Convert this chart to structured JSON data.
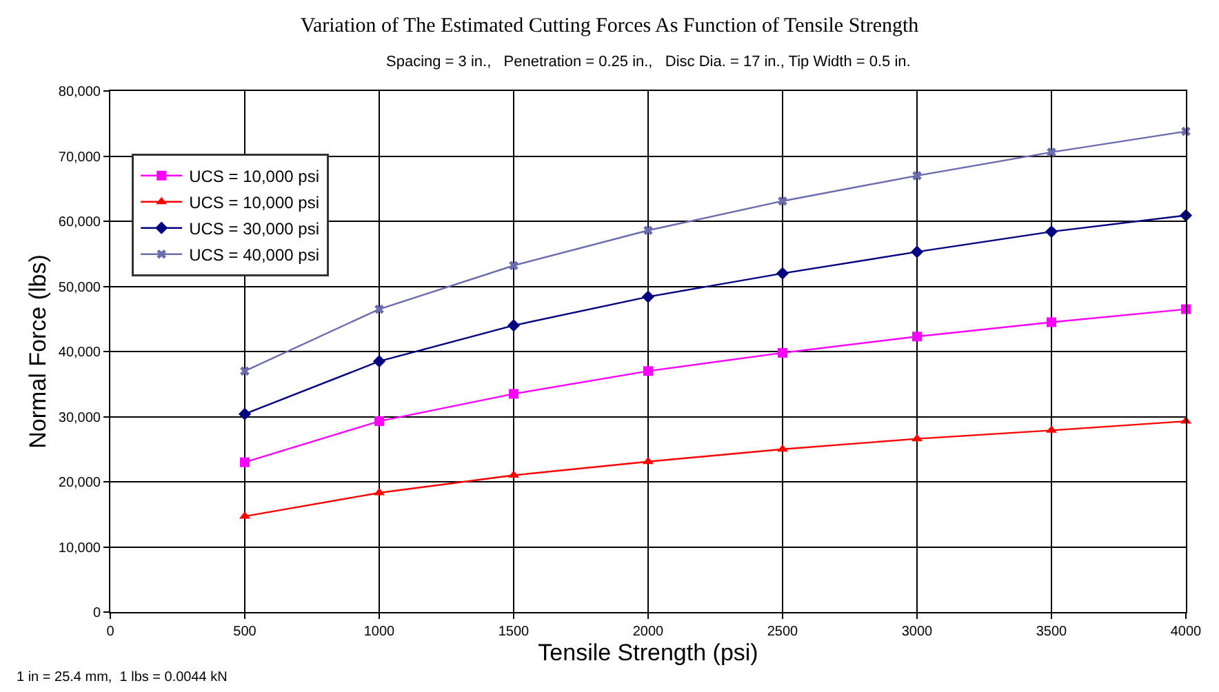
{
  "chart_data": {
    "type": "line",
    "title": "Variation of The Estimated Cutting Forces As Function of Tensile Strength",
    "subtitle": "Spacing = 3 in.,   Penetration = 0.25 in.,   Disc Dia. = 17 in., Tip Width = 0.5 in.",
    "xlabel": "Tensile Strength (psi)",
    "ylabel": "Normal Force (lbs)",
    "x": [
      500,
      1000,
      1500,
      2000,
      2500,
      3000,
      3500,
      4000
    ],
    "series": [
      {
        "name": "UCS = 10,000 psi",
        "color": "#ff00ff",
        "marker": "square",
        "values": [
          23000,
          29300,
          33500,
          37000,
          39800,
          42300,
          44500,
          46500
        ]
      },
      {
        "name": "UCS = 10,000 psi",
        "color": "#ff0000",
        "marker": "triangle",
        "values": [
          14700,
          18300,
          21000,
          23100,
          25000,
          26600,
          27900,
          29300
        ]
      },
      {
        "name": "UCS = 30,000 psi",
        "color": "#000080",
        "marker": "diamond",
        "values": [
          30400,
          38500,
          44000,
          48400,
          52000,
          55300,
          58400,
          60900
        ]
      },
      {
        "name": "UCS = 40,000 psi",
        "color": "#6b6bb0",
        "marker": "cross",
        "values": [
          37000,
          46500,
          53200,
          58600,
          63100,
          67000,
          70600,
          73800
        ]
      }
    ],
    "xlim": [
      0,
      4000
    ],
    "xticks": [
      0,
      500,
      1000,
      1500,
      2000,
      2500,
      3000,
      3500,
      4000
    ],
    "ylim": [
      0,
      80000
    ],
    "yticks": [
      0,
      {
        "value": 10000,
        "label": "10,000"
      },
      {
        "value": 20000,
        "label": "20,000"
      },
      {
        "value": 30000,
        "label": "30,000"
      },
      {
        "value": 40000,
        "label": "40,000"
      },
      {
        "value": 50000,
        "label": "50,000"
      },
      {
        "value": 60000,
        "label": "60,000"
      },
      {
        "value": 70000,
        "label": "70,000"
      },
      {
        "value": 80000,
        "label": "80,000"
      }
    ],
    "grid": true,
    "legend": "top left",
    "line_style": "solid",
    "annotations": [
      "1 in = 25.4 mm,  1 lbs = 0.0044 kN"
    ]
  }
}
